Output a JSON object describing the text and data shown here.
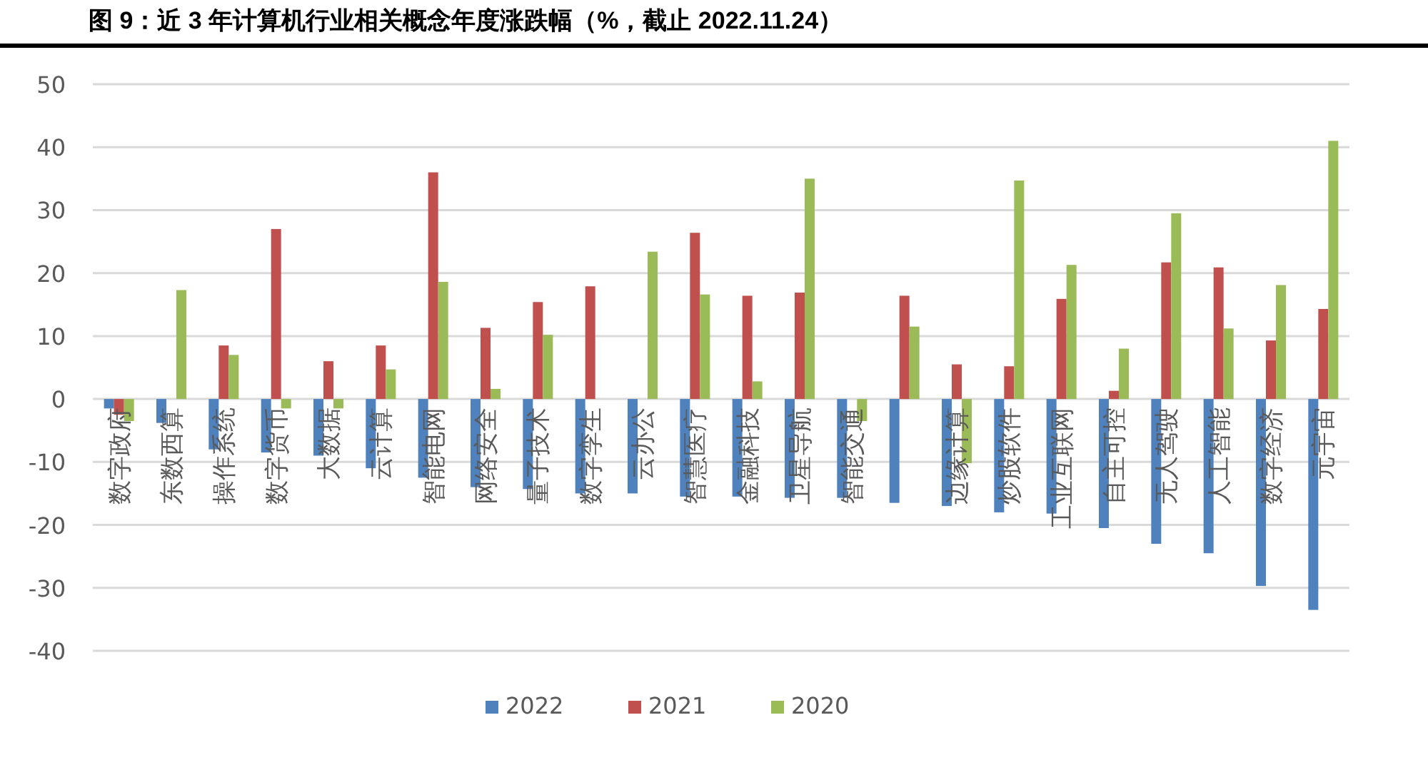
{
  "chart_data": {
    "type": "bar",
    "title": "图 9：近 3 年计算机行业相关概念年度涨跌幅（%，截止 2022.11.24）",
    "categories": [
      "数字政府",
      "东数西算",
      "操作系统",
      "数字货币",
      "大数据",
      "云计算",
      "智能电网",
      "网络安全",
      "量子技术",
      "数字孪生",
      "云办公",
      "智慧医疗",
      "金融科技",
      "卫星导航",
      "智能交通",
      null,
      "边缘计算",
      "炒股软件",
      "工业互联网",
      "自主可控",
      "无人驾驶",
      "人工智能",
      "数字经济",
      "元宇宙"
    ],
    "series": [
      {
        "name": "2022",
        "color": "#4f81bd",
        "values": [
          -1.5,
          -3.8,
          -8,
          -8.5,
          -9,
          -11,
          -12.5,
          -14,
          -14.3,
          -15,
          -15,
          -15.5,
          -15.5,
          -15.7,
          -15.7,
          -16.5,
          -17,
          -18,
          -18.2,
          -20.5,
          -23,
          -24.5,
          -29.7,
          -33.5
        ]
      },
      {
        "name": "2021",
        "color": "#c0504d",
        "values": [
          -2.5,
          null,
          8.5,
          27,
          6,
          8.5,
          36,
          11.3,
          15.4,
          17.9,
          null,
          26.4,
          16.4,
          16.9,
          null,
          16.4,
          5.5,
          5.2,
          15.9,
          1.3,
          21.7,
          20.9,
          9.3,
          14.3
        ]
      },
      {
        "name": "2020",
        "color": "#9bbb59",
        "values": [
          -3.5,
          17.3,
          7,
          -1.5,
          -1.5,
          4.7,
          18.6,
          1.6,
          10.2,
          null,
          23.4,
          16.6,
          2.8,
          35,
          -3.5,
          11.5,
          -10.2,
          34.7,
          21.3,
          8,
          29.5,
          11.2,
          18.1,
          41
        ]
      }
    ],
    "ylim": [
      -40,
      50
    ],
    "yticks": [
      -40,
      -30,
      -20,
      -10,
      0,
      10,
      20,
      30,
      40,
      50
    ],
    "grid": "y",
    "legend": "bottom"
  }
}
